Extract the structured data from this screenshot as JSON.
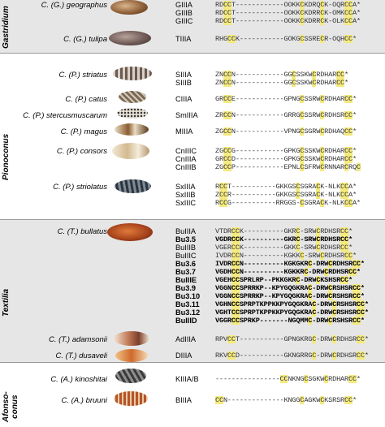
{
  "colors": {
    "band_grey": "#e6e6e6",
    "cys_highlight": "#f4ea7e",
    "separator": "#9a9a9a"
  },
  "clades": [
    {
      "name": "Gastridium"
    },
    {
      "name": "Pionoconus"
    },
    {
      "name": "Textilia"
    },
    {
      "name_line1": "Afonso-",
      "name_line2": "conus"
    }
  ],
  "species": [
    "C. (G.) geographus",
    "C. (G.) tulipa",
    "C. (P.) striatus",
    "C. (P.) catus",
    "C. (P.) stercusmuscarum",
    "C. (P.) magus",
    "C. (P.) consors",
    "C. (P.) striolatus",
    "C. (T.) bullatus",
    "C. (T.) adamsonii",
    "C. (T.) dusaveli",
    "C. (A.) kinoshitai",
    "C. (A.) bruuni"
  ],
  "rows": [
    {
      "code": "GIIIA",
      "seq": "RDCCT------------OOKKCKDRQCK-OQRCCA*",
      "bold": false
    },
    {
      "code": "GIIIB",
      "seq": "RDCCT------------OOKKCKDRRCK-OMKCCA*",
      "bold": false
    },
    {
      "code": "GIIIC",
      "seq": "RDCCT------------OOKKCKDRRCK-OLKCCA*",
      "bold": false
    },
    {
      "code": "TIIIA",
      "seq": "RHGCCK-----------GOKGCSSRECR-OQHCC*",
      "bold": false
    },
    {
      "code": "SIIIA",
      "seq": "ZNCCN------------GGCSSKWCRDHARCC*",
      "bold": false
    },
    {
      "code": "SIIIB",
      "seq": "ZNCCN------------GGCSSKWCRDHARCC*",
      "bold": false
    },
    {
      "code": "CIIIA",
      "seq": "GRCCE------------GPNGCSSRWCRDHARCC*",
      "bold": false
    },
    {
      "code": "SmIIIA",
      "seq": "ZRCCN------------GRRGCSSRWCRDHSRCC*",
      "bold": false
    },
    {
      "code": "MIIIA",
      "seq": "ZGCCN------------VPNGCSGRWCRDHAQCC*",
      "bold": false
    },
    {
      "code": "CnIIIC",
      "seq": "ZGCCG------------GPKGCSSKWCRDHARCC*",
      "bold": false
    },
    {
      "code": "CnIIIA",
      "seq": "GRCCD------------GPKGCSSKWCRDHARCC*",
      "bold": false
    },
    {
      "code": "CnIIIB",
      "seq": "ZGCCP------------EPNLCSFRWCRNNARCRQC",
      "bold": false
    },
    {
      "code": "SxIIIA",
      "seq": "RCCT-----------GKKGSCSGRACK-NLKCCA*",
      "bold": false
    },
    {
      "code": "SxIIIB",
      "seq": "ZCCR-----------GKKGSCSGRACK-NLKCCA*",
      "bold": false
    },
    {
      "code": "SxIIIC",
      "seq": "RCCG-----------RRGGS-CSGRACK-NLKCCA*",
      "bold": false
    },
    {
      "code": "BuIIIA",
      "seq": "VTDRCCK----------GKRC-SRWCRDHSRCC*",
      "bold": false
    },
    {
      "code": "Bu3.5",
      "seq": "VGDRCCK----------GKRC-SRWCRDHSRCC*",
      "bold": true
    },
    {
      "code": "BuIIIB",
      "seq": "VGERCCK----------GKKC-SRWCRDHSRCC*",
      "bold": false
    },
    {
      "code": "BuIIIC",
      "seq": "IVDRCCN----------KGKKC-SRWCRDHSRCC*",
      "bold": false
    },
    {
      "code": "Bu3.6",
      "seq": "IVDRCCN----------KGKGKRC-DRWCRDHSRCC*",
      "bold": true
    },
    {
      "code": "Bu3.7",
      "seq": "VGDHCCN----------KGKKRC-DRWCRDHSRCC*",
      "bold": true
    },
    {
      "code": "BuIIIE",
      "seq": "VGEHCCSPRLRP--PKKGKRC-DRWCKSHSRCC*",
      "bold": true
    },
    {
      "code": "Bu3.9",
      "seq": "VGGNCCSPRRKP--KPYGQGKRAC-DRWCRSHSRCC*",
      "bold": true
    },
    {
      "code": "Bu3.10",
      "seq": "VGGNCCSPRRKP--KPYGQGKRAC-DRWCRSHSRCC*",
      "bold": true
    },
    {
      "code": "Bu3.11",
      "seq": "VGHNCCSPRPTKPPKKPYGQGKRAC-DRWCRSHSRCC*",
      "bold": true
    },
    {
      "code": "Bu3.12",
      "seq": "VGHTCCSPRPTKPPKKPYGQGKRAC-DRWCRSHSRCC*",
      "bold": true
    },
    {
      "code": "BuIIID",
      "seq": "VGGRCCSPRKP-------NGQMMC-DRWCRSHSRCC*",
      "bold": true
    },
    {
      "code": "AdIIIA",
      "seq": "RPVCCT-----------GPNGKRGC-DRWCRDHSRCC*",
      "bold": false
    },
    {
      "code": "DIIIA",
      "seq": "RKVCCD-----------GKNGRRGC-DRWCRDHSRCC*",
      "bold": false
    },
    {
      "code": "KIIIA/B",
      "seq": "----------------CCNKNGCSGKWCRDHARCC*",
      "bold": false
    },
    {
      "code": "BIIIA",
      "seq": "CCN--------------KNGGCAGKWCKSRSRCC*",
      "bold": false
    }
  ]
}
